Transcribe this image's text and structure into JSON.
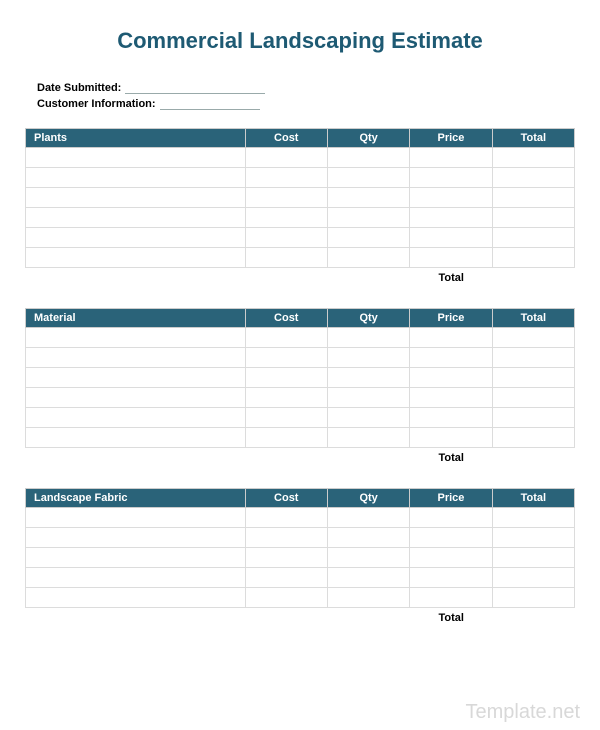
{
  "title": "Commercial Landscaping Estimate",
  "title_color": "#1e5a73",
  "header_bg": "#2a6379",
  "info": {
    "date_label": "Date Submitted:",
    "customer_label": "Customer Information:"
  },
  "sections": [
    {
      "name": "Plants",
      "columns": [
        "Plants",
        "Cost",
        "Qty",
        "Price",
        "Total"
      ],
      "row_count": 6,
      "total_label": "Total"
    },
    {
      "name": "Material",
      "columns": [
        "Material",
        "Cost",
        "Qty",
        "Price",
        "Total"
      ],
      "row_count": 6,
      "total_label": "Total"
    },
    {
      "name": "Landscape Fabric",
      "columns": [
        "Landscape Fabric",
        "Cost",
        "Qty",
        "Price",
        "Total"
      ],
      "row_count": 5,
      "total_label": "Total"
    }
  ],
  "watermark": "Template.net"
}
